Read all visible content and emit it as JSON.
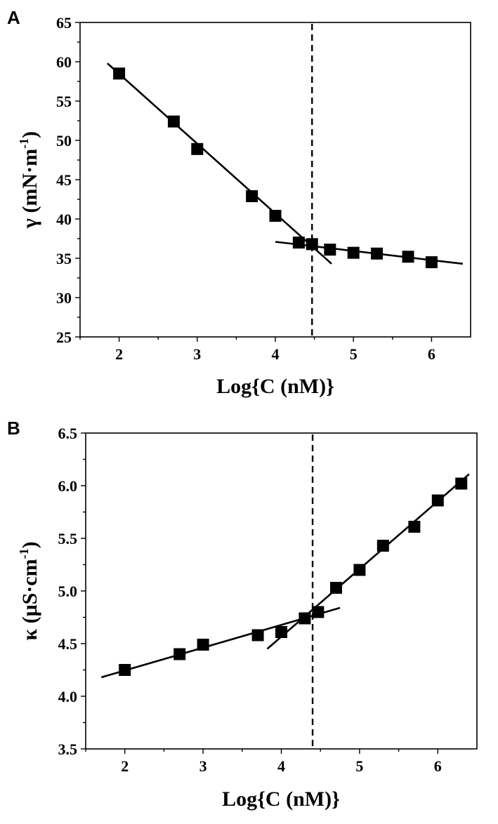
{
  "chart_data": [
    {
      "panel": "A",
      "type": "scatter",
      "xlabel": "Log{C (nM)}",
      "ylabel": "γ (mN·m⁻¹)",
      "ylabel_main": "γ (mN·m",
      "ylabel_sup": "-1",
      "ylabel_tail": ")",
      "xlim": [
        1.5,
        6.5
      ],
      "ylim": [
        25,
        65
      ],
      "xticks": [
        2,
        3,
        4,
        5,
        6
      ],
      "yticks": [
        25,
        30,
        35,
        40,
        45,
        50,
        55,
        60,
        65
      ],
      "points": [
        {
          "x": 2.0,
          "y": 58.5
        },
        {
          "x": 2.7,
          "y": 52.4
        },
        {
          "x": 3.0,
          "y": 48.9
        },
        {
          "x": 3.7,
          "y": 42.9
        },
        {
          "x": 4.0,
          "y": 40.4
        },
        {
          "x": 4.3,
          "y": 37.0
        },
        {
          "x": 4.47,
          "y": 36.8
        },
        {
          "x": 4.7,
          "y": 36.1
        },
        {
          "x": 5.0,
          "y": 35.7
        },
        {
          "x": 5.3,
          "y": 35.6
        },
        {
          "x": 5.7,
          "y": 35.2
        },
        {
          "x": 6.0,
          "y": 34.5
        }
      ],
      "fit_lines": [
        {
          "x": [
            1.85,
            4.72
          ],
          "y": [
            59.8,
            34.3
          ]
        },
        {
          "x": [
            4.0,
            6.4
          ],
          "y": [
            37.1,
            34.3
          ]
        }
      ],
      "cmc_x": 4.47
    },
    {
      "panel": "B",
      "type": "scatter",
      "xlabel": "Log{C (nM)}",
      "ylabel": "κ (μS·cm⁻¹)",
      "ylabel_main": "κ (μS·cm",
      "ylabel_sup": "-1",
      "ylabel_tail": ")",
      "xlim": [
        1.5,
        6.5
      ],
      "ylim": [
        3.5,
        6.5
      ],
      "xticks": [
        2,
        3,
        4,
        5,
        6
      ],
      "yticks": [
        3.5,
        4.0,
        4.5,
        5.0,
        5.5,
        6.0,
        6.5
      ],
      "ytick_labels": [
        "3.5",
        "4.0",
        "4.5",
        "5.0",
        "5.5",
        "6.0",
        "6.5"
      ],
      "points": [
        {
          "x": 2.0,
          "y": 4.25
        },
        {
          "x": 2.7,
          "y": 4.4
        },
        {
          "x": 3.0,
          "y": 4.49
        },
        {
          "x": 3.7,
          "y": 4.58
        },
        {
          "x": 4.0,
          "y": 4.61
        },
        {
          "x": 4.3,
          "y": 4.74
        },
        {
          "x": 4.47,
          "y": 4.8
        },
        {
          "x": 4.7,
          "y": 5.03
        },
        {
          "x": 5.0,
          "y": 5.2
        },
        {
          "x": 5.3,
          "y": 5.43
        },
        {
          "x": 5.7,
          "y": 5.61
        },
        {
          "x": 6.0,
          "y": 5.86
        },
        {
          "x": 6.3,
          "y": 6.02
        }
      ],
      "fit_lines": [
        {
          "x": [
            1.7,
            4.75
          ],
          "y": [
            4.18,
            4.84
          ]
        },
        {
          "x": [
            3.82,
            6.4
          ],
          "y": [
            4.45,
            6.11
          ]
        }
      ],
      "cmc_x": 4.4
    }
  ]
}
